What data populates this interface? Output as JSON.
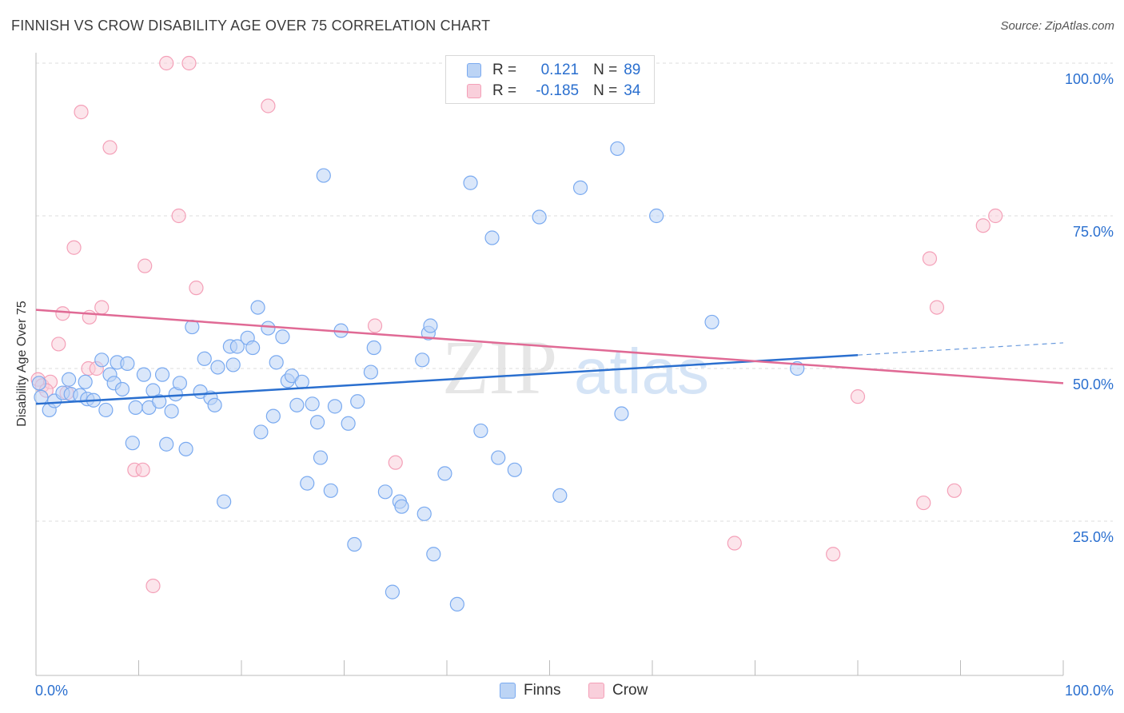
{
  "title": "FINNISH VS CROW DISABILITY AGE OVER 75 CORRELATION CHART",
  "source": "Source: ZipAtlas.com",
  "watermark": {
    "part1": "ZIP",
    "part2": "atlas"
  },
  "legend": {
    "rows": [
      {
        "r_label": "R =",
        "r_value": "0.121",
        "n_label": "N =",
        "n_value": "89",
        "color": "#7aaaf0"
      },
      {
        "r_label": "R =",
        "r_value": "-0.185",
        "n_label": "N =",
        "n_value": "34",
        "color": "#f4a0b8"
      }
    ]
  },
  "bottom_legend": [
    {
      "label": "Finns",
      "color": "#7aaaf0"
    },
    {
      "label": "Crow",
      "color": "#f4a0b8"
    }
  ],
  "chart_data": {
    "type": "scatter",
    "ylabel": "Disability Age Over 75",
    "xlim": [
      0,
      100
    ],
    "ylim": [
      0,
      100
    ],
    "x_tick_labels": [
      "0.0%",
      "100.0%"
    ],
    "y_ticks": [
      25,
      50,
      75,
      100
    ],
    "y_tick_labels": [
      "25.0%",
      "50.0%",
      "75.0%",
      "100.0%"
    ],
    "grid": "horizontal dashed",
    "colors": {
      "finns_fill": "#bcd4f5",
      "finns_stroke": "#7aaaf0",
      "finns_line": "#2a6fcf",
      "crow_fill": "#f9cfdb",
      "crow_stroke": "#f4a0b8",
      "crow_line": "#e06a95",
      "tick_label": "#2a6fcf"
    },
    "series": [
      {
        "name": "Finns",
        "trend": {
          "x0": 0,
          "y0": 44.2,
          "x1": 80,
          "y1": 52.2,
          "dash_x1": 100,
          "dash_y1": 54.2
        },
        "points": [
          [
            0.5,
            45.3
          ],
          [
            1.3,
            43.2
          ],
          [
            1.8,
            44.7
          ],
          [
            2.6,
            46.0
          ],
          [
            3.4,
            45.8
          ],
          [
            3.2,
            48.2
          ],
          [
            4.3,
            45.6
          ],
          [
            5.0,
            45.0
          ],
          [
            4.8,
            47.8
          ],
          [
            5.6,
            44.8
          ],
          [
            6.4,
            51.4
          ],
          [
            6.8,
            43.2
          ],
          [
            7.2,
            49.0
          ],
          [
            7.6,
            47.6
          ],
          [
            7.9,
            51.0
          ],
          [
            8.4,
            46.6
          ],
          [
            8.9,
            50.8
          ],
          [
            9.4,
            37.8
          ],
          [
            9.7,
            43.6
          ],
          [
            10.5,
            49.0
          ],
          [
            11.0,
            43.6
          ],
          [
            11.4,
            46.4
          ],
          [
            12.0,
            44.6
          ],
          [
            12.3,
            49.0
          ],
          [
            12.7,
            37.6
          ],
          [
            13.2,
            43.0
          ],
          [
            13.6,
            45.8
          ],
          [
            14.0,
            47.6
          ],
          [
            14.6,
            36.8
          ],
          [
            15.2,
            56.8
          ],
          [
            16.0,
            46.2
          ],
          [
            16.4,
            51.6
          ],
          [
            17.0,
            45.2
          ],
          [
            17.4,
            44.0
          ],
          [
            17.7,
            50.2
          ],
          [
            18.3,
            28.2
          ],
          [
            18.9,
            53.6
          ],
          [
            19.2,
            50.6
          ],
          [
            19.6,
            53.6
          ],
          [
            20.6,
            55.0
          ],
          [
            21.1,
            53.4
          ],
          [
            21.6,
            60.0
          ],
          [
            21.9,
            39.6
          ],
          [
            22.6,
            56.6
          ],
          [
            23.1,
            42.2
          ],
          [
            23.4,
            51.0
          ],
          [
            24.0,
            55.2
          ],
          [
            24.5,
            48.0
          ],
          [
            24.9,
            48.8
          ],
          [
            25.4,
            44.0
          ],
          [
            25.9,
            47.8
          ],
          [
            26.4,
            31.2
          ],
          [
            26.9,
            44.2
          ],
          [
            27.4,
            41.2
          ],
          [
            27.7,
            35.4
          ],
          [
            28.0,
            81.6
          ],
          [
            28.7,
            30.0
          ],
          [
            29.1,
            43.8
          ],
          [
            29.7,
            56.2
          ],
          [
            30.4,
            41.0
          ],
          [
            31.0,
            21.2
          ],
          [
            31.3,
            44.6
          ],
          [
            32.6,
            49.4
          ],
          [
            32.9,
            53.4
          ],
          [
            34.0,
            29.8
          ],
          [
            34.7,
            13.4
          ],
          [
            35.4,
            28.2
          ],
          [
            35.6,
            27.4
          ],
          [
            37.6,
            51.4
          ],
          [
            37.8,
            26.2
          ],
          [
            38.2,
            55.8
          ],
          [
            38.4,
            57.0
          ],
          [
            38.7,
            19.6
          ],
          [
            39.8,
            32.8
          ],
          [
            41.0,
            11.4
          ],
          [
            42.3,
            80.4
          ],
          [
            43.3,
            39.8
          ],
          [
            44.4,
            71.4
          ],
          [
            45.0,
            35.4
          ],
          [
            46.6,
            33.4
          ],
          [
            49.0,
            74.8
          ],
          [
            51.0,
            29.2
          ],
          [
            53.0,
            79.6
          ],
          [
            56.6,
            86.0
          ],
          [
            57.0,
            42.6
          ],
          [
            60.4,
            75.0
          ],
          [
            65.8,
            57.6
          ],
          [
            74.1,
            50.0
          ],
          [
            0.3,
            47.6
          ]
        ]
      },
      {
        "name": "Crow",
        "trend": {
          "x0": 0,
          "y0": 59.6,
          "x1": 100,
          "y1": 47.6
        },
        "points": [
          [
            0.2,
            48.2
          ],
          [
            0.6,
            47.2
          ],
          [
            1.4,
            47.8
          ],
          [
            2.2,
            54.0
          ],
          [
            2.6,
            59.0
          ],
          [
            3.7,
            69.8
          ],
          [
            4.4,
            92.0
          ],
          [
            5.1,
            50.0
          ],
          [
            5.2,
            58.4
          ],
          [
            5.9,
            50.0
          ],
          [
            6.4,
            60.0
          ],
          [
            7.2,
            86.2
          ],
          [
            9.6,
            33.4
          ],
          [
            10.4,
            33.4
          ],
          [
            10.6,
            66.8
          ],
          [
            11.4,
            14.4
          ],
          [
            12.7,
            100.0
          ],
          [
            13.9,
            75.0
          ],
          [
            14.9,
            100.0
          ],
          [
            15.6,
            63.2
          ],
          [
            22.6,
            93.0
          ],
          [
            33.0,
            57.0
          ],
          [
            35.0,
            34.6
          ],
          [
            68.0,
            21.4
          ],
          [
            77.6,
            19.6
          ],
          [
            80.0,
            45.4
          ],
          [
            86.4,
            28.0
          ],
          [
            87.0,
            68.0
          ],
          [
            87.7,
            60.0
          ],
          [
            89.4,
            30.0
          ],
          [
            92.2,
            73.4
          ],
          [
            93.4,
            75.0
          ],
          [
            1.0,
            46.4
          ],
          [
            3.0,
            46.0
          ]
        ]
      }
    ]
  }
}
